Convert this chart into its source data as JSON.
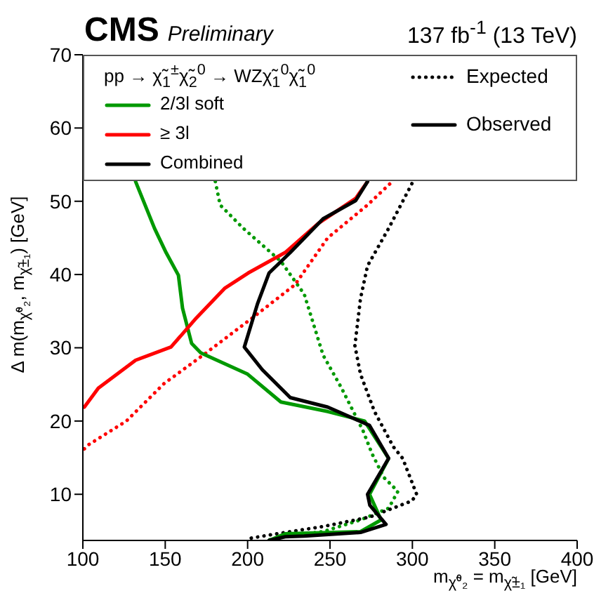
{
  "chart_data": {
    "type": "line",
    "title": "CMS",
    "subtitle": "Preliminary",
    "xlabel": "m$_{χ̃⁰₂}$ = m$_{χ̃±₁}$ [GeV]",
    "ylabel": "Δ m(m$_{χ̃⁰₂}$, m$_{χ̃±₁}$) [GeV]",
    "legend_title": "pp → χ̃$_{1}$$^{±}$χ̃$_{2}$$^{0}$ → WZχ̃$_{1}$$^{0}$χ̃$_{1}$$^{0}$",
    "legend": "top",
    "xlim": [
      100,
      400
    ],
    "xticks": [
      100,
      150,
      200,
      250,
      300,
      350,
      400
    ],
    "ylim": [
      3.7,
      70
    ],
    "yticks": [
      10,
      20,
      30,
      40,
      50,
      60,
      70
    ],
    "annotations": [
      "Expected",
      "Observed",
      "137 fb$^{-1}$ (13 TeV)"
    ],
    "series": [
      {
        "color": "#009900",
        "line_style": "dotted",
        "x": [
          180.4,
          183.3,
          197.4,
          220.2,
          234.4,
          245.8,
          257,
          270,
          275.6,
          282.7,
          291.2,
          285.6,
          268.5,
          245.8,
          222.8,
          211.7
        ],
        "values": [
          52.7,
          49.5,
          46.3,
          41.8,
          37.3,
          29,
          24.5,
          18.7,
          15.5,
          12.3,
          10.4,
          8.1,
          6.5,
          4.9,
          4.3,
          3.7
        ]
      },
      {
        "color": "#ff0000",
        "line_style": "dotted",
        "x": [
          100.9,
          103.7,
          126.4,
          149.2,
          174.8,
          203,
          228.7,
          248.6,
          272.8,
          287.8
        ],
        "values": [
          16.2,
          16.8,
          20,
          25.1,
          29.3,
          34.1,
          38.6,
          45,
          49.5,
          52.7
        ]
      },
      {
        "color": "#000000",
        "line_style": "dotted",
        "x": [
          299.7,
          285.6,
          272.8,
          268.5,
          265.1,
          268.5,
          277,
          288.4,
          294.1,
          302.6,
          299.7,
          274.2,
          245.8,
          217.4,
          201.7
        ],
        "values": [
          52.4,
          46.3,
          41.2,
          36.7,
          30.3,
          26.4,
          21.3,
          16.5,
          14.9,
          10,
          9.1,
          6.9,
          5.6,
          4.6,
          4
        ]
      },
      {
        "name": "2/3l soft",
        "color": "#009900",
        "line_style": "solid",
        "x": [
          132,
          143.5,
          150.5,
          158,
          160.5,
          166,
          171.6,
          200,
          220.2,
          248.6,
          271,
          285.6,
          274,
          281,
          268.5,
          222.8,
          213
        ],
        "values": [
          52.7,
          46.3,
          43,
          39.9,
          35.4,
          30.6,
          29.3,
          26.4,
          22.6,
          21.3,
          20,
          14.9,
          10,
          6.5,
          4.9,
          4.6,
          3.7
        ]
      },
      {
        "name": "≥ 3l",
        "color": "#ff0000",
        "line_style": "solid",
        "x": [
          100.9,
          109.4,
          132,
          153.5,
          169,
          186,
          200.3,
          222.8,
          243,
          265.6,
          272.8
        ],
        "values": [
          21.9,
          24.5,
          28.3,
          30.1,
          34.1,
          38.1,
          40.2,
          43,
          47,
          50.4,
          52.7
        ]
      },
      {
        "name": "Combined",
        "color": "#000000",
        "line_style": "solid",
        "x": [
          272.8,
          265.6,
          245.8,
          225.9,
          213,
          206,
          198,
          208.9,
          225.9,
          248.6,
          274,
          285.6,
          272.8,
          274.2,
          284,
          268.5,
          234.4,
          222.8,
          213
        ],
        "values": [
          52.7,
          50.1,
          47.6,
          43,
          40.2,
          36,
          30.1,
          27,
          23.2,
          21.9,
          19.4,
          14.9,
          10,
          8.5,
          5.9,
          4.8,
          4.3,
          4.2,
          3.7
        ]
      }
    ]
  }
}
